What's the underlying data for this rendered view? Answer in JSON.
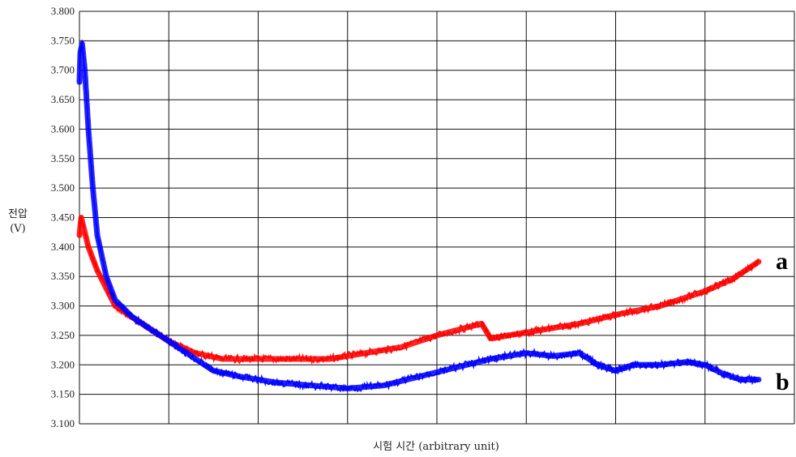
{
  "chart_data": {
    "type": "line",
    "title": "",
    "ylabel_line1": "전압",
    "ylabel_line2": "(V)",
    "xlabel": "시험 시간 (arbitrary unit)",
    "ylim": [
      3.1,
      3.8
    ],
    "xlim": [
      0,
      8
    ],
    "y_ticks": [
      "3.100",
      "3.150",
      "3.200",
      "3.250",
      "3.300",
      "3.350",
      "3.400",
      "3.450",
      "3.500",
      "3.550",
      "3.600",
      "3.650",
      "3.700",
      "3.750",
      "3.800"
    ],
    "x_gridlines": 8,
    "grid": true,
    "series": [
      {
        "name": "a",
        "color": "#ff0000",
        "x": [
          0.0,
          0.02,
          0.1,
          0.2,
          0.4,
          0.7,
          1.0,
          1.3,
          1.6,
          2.0,
          2.4,
          2.8,
          3.2,
          3.6,
          4.0,
          4.5,
          4.6,
          4.8,
          5.2,
          5.6,
          6.0,
          6.5,
          7.0,
          7.3,
          7.6
        ],
        "values": [
          3.42,
          3.45,
          3.4,
          3.36,
          3.3,
          3.27,
          3.24,
          3.22,
          3.21,
          3.21,
          3.21,
          3.21,
          3.22,
          3.23,
          3.25,
          3.27,
          3.245,
          3.25,
          3.26,
          3.27,
          3.285,
          3.3,
          3.325,
          3.345,
          3.375
        ]
      },
      {
        "name": "b",
        "color": "#0000ff",
        "x": [
          0.0,
          0.01,
          0.03,
          0.06,
          0.1,
          0.15,
          0.2,
          0.3,
          0.4,
          0.6,
          0.9,
          1.2,
          1.5,
          1.8,
          2.2,
          2.6,
          3.0,
          3.4,
          3.8,
          4.2,
          4.6,
          5.0,
          5.3,
          5.6,
          5.8,
          6.0,
          6.2,
          6.5,
          6.8,
          7.0,
          7.2,
          7.4,
          7.6
        ],
        "values": [
          3.68,
          3.73,
          3.745,
          3.7,
          3.6,
          3.5,
          3.42,
          3.35,
          3.31,
          3.28,
          3.25,
          3.22,
          3.19,
          3.18,
          3.17,
          3.165,
          3.16,
          3.165,
          3.18,
          3.195,
          3.21,
          3.22,
          3.215,
          3.22,
          3.2,
          3.19,
          3.2,
          3.2,
          3.205,
          3.2,
          3.185,
          3.175,
          3.175
        ]
      }
    ]
  }
}
